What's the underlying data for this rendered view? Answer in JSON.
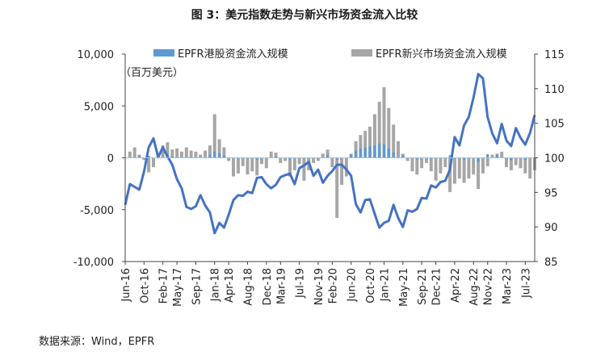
{
  "title": "图 3：美元指数走势与新兴市场资金流入比较",
  "source": "数据来源：Wind，EPFR",
  "chart_data": {
    "type": "bar+line",
    "y_left": {
      "label": "（百万美元）",
      "ylim": [
        -10000,
        10000
      ],
      "ticks": [
        -10000,
        -5000,
        0,
        5000,
        10000
      ],
      "tick_labels": [
        "-10,000",
        "-5,000",
        "0",
        "5,000",
        "10,000"
      ]
    },
    "y_right": {
      "label": "",
      "ylim": [
        85,
        115
      ],
      "ticks": [
        85,
        90,
        95,
        100,
        105,
        110,
        115
      ],
      "tick_labels": [
        "85",
        "90",
        "95",
        "100",
        "105",
        "110",
        "115"
      ]
    },
    "x_range": [
      "2016-06",
      "2023-09"
    ],
    "x_ticks": [
      {
        "date": "2016-06",
        "label": "Jun-16"
      },
      {
        "date": "2016-10",
        "label": "Oct-16"
      },
      {
        "date": "2017-02",
        "label": "Feb-17"
      },
      {
        "date": "2017-05",
        "label": "May-17"
      },
      {
        "date": "2017-09",
        "label": "Sep-17"
      },
      {
        "date": "2018-01",
        "label": "Jan-18"
      },
      {
        "date": "2018-04",
        "label": "Apr-18"
      },
      {
        "date": "2018-08",
        "label": "Aug-18"
      },
      {
        "date": "2018-12",
        "label": "Dec-18"
      },
      {
        "date": "2019-03",
        "label": "Mar-19"
      },
      {
        "date": "2019-07",
        "label": "Jul-19"
      },
      {
        "date": "2019-11",
        "label": "Nov-19"
      },
      {
        "date": "2020-02",
        "label": "Feb-20"
      },
      {
        "date": "2020-06",
        "label": "Jun-20"
      },
      {
        "date": "2020-10",
        "label": "Oct-20"
      },
      {
        "date": "2021-01",
        "label": "Jan-21"
      },
      {
        "date": "2021-05",
        "label": "May-21"
      },
      {
        "date": "2021-09",
        "label": "Sep-21"
      },
      {
        "date": "2021-12",
        "label": "Dec-21"
      },
      {
        "date": "2022-04",
        "label": "Apr-22"
      },
      {
        "date": "2022-08",
        "label": "Aug-22"
      },
      {
        "date": "2022-11",
        "label": "Nov-22"
      },
      {
        "date": "2023-03",
        "label": "Mar-23"
      },
      {
        "date": "2023-07",
        "label": "Jul-23"
      }
    ],
    "legend": [
      "EPFR港股资金流入规模",
      "EPFR新兴市场资金流入规模"
    ],
    "series": [
      {
        "name": "EPFR港股资金流入规模",
        "type": "bar",
        "axis": "left",
        "color": "#5b9bd5",
        "points": [
          [
            "2016-09",
            150
          ],
          [
            "2016-11",
            200
          ],
          [
            "2017-01",
            350
          ],
          [
            "2017-04",
            120
          ],
          [
            "2017-08",
            80
          ],
          [
            "2017-12",
            300
          ],
          [
            "2018-01",
            600
          ],
          [
            "2018-02",
            450
          ],
          [
            "2018-03",
            200
          ],
          [
            "2018-06",
            -100
          ],
          [
            "2018-10",
            -150
          ],
          [
            "2019-02",
            100
          ],
          [
            "2019-05",
            -120
          ],
          [
            "2019-08",
            -100
          ],
          [
            "2020-01",
            250
          ],
          [
            "2020-03",
            -200
          ],
          [
            "2020-06",
            300
          ],
          [
            "2020-07",
            700
          ],
          [
            "2020-08",
            900
          ],
          [
            "2020-09",
            1000
          ],
          [
            "2020-10",
            1100
          ],
          [
            "2020-11",
            1200
          ],
          [
            "2020-12",
            1400
          ],
          [
            "2021-01",
            1300
          ],
          [
            "2021-02",
            900
          ],
          [
            "2021-03",
            500
          ],
          [
            "2021-05",
            200
          ],
          [
            "2021-08",
            -150
          ],
          [
            "2021-11",
            -100
          ],
          [
            "2022-03",
            250
          ],
          [
            "2022-06",
            -200
          ],
          [
            "2022-09",
            -400
          ],
          [
            "2022-11",
            350
          ],
          [
            "2023-01",
            300
          ],
          [
            "2023-04",
            -250
          ],
          [
            "2023-07",
            -200
          ]
        ]
      },
      {
        "name": "EPFR新兴市场资金流入规模",
        "type": "bar",
        "axis": "left",
        "color": "#a6a6a6",
        "points": [
          [
            "2016-07",
            600
          ],
          [
            "2016-08",
            1000
          ],
          [
            "2016-09",
            300
          ],
          [
            "2016-10",
            -200
          ],
          [
            "2016-11",
            -1400
          ],
          [
            "2016-12",
            -900
          ],
          [
            "2017-01",
            300
          ],
          [
            "2017-02",
            1200
          ],
          [
            "2017-03",
            1500
          ],
          [
            "2017-04",
            800
          ],
          [
            "2017-05",
            900
          ],
          [
            "2017-06",
            600
          ],
          [
            "2017-07",
            1000
          ],
          [
            "2017-08",
            700
          ],
          [
            "2017-09",
            600
          ],
          [
            "2017-10",
            300
          ],
          [
            "2017-11",
            700
          ],
          [
            "2017-12",
            1200
          ],
          [
            "2018-01",
            4200
          ],
          [
            "2018-02",
            1800
          ],
          [
            "2018-03",
            1000
          ],
          [
            "2018-04",
            -300
          ],
          [
            "2018-05",
            -1800
          ],
          [
            "2018-06",
            -1500
          ],
          [
            "2018-07",
            -800
          ],
          [
            "2018-08",
            -1600
          ],
          [
            "2018-09",
            -1300
          ],
          [
            "2018-10",
            -1700
          ],
          [
            "2018-11",
            -600
          ],
          [
            "2018-12",
            -1000
          ],
          [
            "2019-01",
            600
          ],
          [
            "2019-02",
            500
          ],
          [
            "2019-03",
            -500
          ],
          [
            "2019-04",
            -300
          ],
          [
            "2019-05",
            -1800
          ],
          [
            "2019-06",
            -1200
          ],
          [
            "2019-07",
            -600
          ],
          [
            "2019-08",
            -2200
          ],
          [
            "2019-09",
            -1200
          ],
          [
            "2019-10",
            -500
          ],
          [
            "2019-11",
            -300
          ],
          [
            "2019-12",
            400
          ],
          [
            "2020-01",
            800
          ],
          [
            "2020-02",
            -900
          ],
          [
            "2020-03",
            -5800
          ],
          [
            "2020-04",
            -2600
          ],
          [
            "2020-05",
            -1800
          ],
          [
            "2020-06",
            400
          ],
          [
            "2020-07",
            1600
          ],
          [
            "2020-08",
            2200
          ],
          [
            "2020-09",
            2600
          ],
          [
            "2020-10",
            3000
          ],
          [
            "2020-11",
            4200
          ],
          [
            "2020-12",
            5400
          ],
          [
            "2021-01",
            6800
          ],
          [
            "2021-02",
            4800
          ],
          [
            "2021-03",
            3200
          ],
          [
            "2021-04",
            1600
          ],
          [
            "2021-05",
            400
          ],
          [
            "2021-06",
            -300
          ],
          [
            "2021-07",
            -1300
          ],
          [
            "2021-08",
            -1600
          ],
          [
            "2021-09",
            -1000
          ],
          [
            "2021-10",
            -500
          ],
          [
            "2021-11",
            -1300
          ],
          [
            "2021-12",
            -2200
          ],
          [
            "2022-01",
            -1500
          ],
          [
            "2022-02",
            -900
          ],
          [
            "2022-03",
            -3300
          ],
          [
            "2022-04",
            -2500
          ],
          [
            "2022-05",
            -2000
          ],
          [
            "2022-06",
            -2400
          ],
          [
            "2022-07",
            -2000
          ],
          [
            "2022-08",
            -1600
          ],
          [
            "2022-09",
            -3000
          ],
          [
            "2022-10",
            -1500
          ],
          [
            "2022-11",
            -800
          ],
          [
            "2022-12",
            300
          ],
          [
            "2023-01",
            400
          ],
          [
            "2023-02",
            600
          ],
          [
            "2023-03",
            -900
          ],
          [
            "2023-04",
            -1200
          ],
          [
            "2023-05",
            -700
          ],
          [
            "2023-06",
            -1000
          ],
          [
            "2023-07",
            -1500
          ],
          [
            "2023-08",
            -2000
          ],
          [
            "2023-09",
            -1200
          ]
        ]
      },
      {
        "name": "",
        "type": "line",
        "axis": "right",
        "color": "#4472c4",
        "points": [
          [
            "2016-06",
            93.2
          ],
          [
            "2016-07",
            96.2
          ],
          [
            "2016-08",
            95.8
          ],
          [
            "2016-09",
            95.4
          ],
          [
            "2016-10",
            98.0
          ],
          [
            "2016-11",
            101.5
          ],
          [
            "2016-12",
            102.8
          ],
          [
            "2017-01",
            100.1
          ],
          [
            "2017-02",
            101.5
          ],
          [
            "2017-03",
            100.2
          ],
          [
            "2017-04",
            99.0
          ],
          [
            "2017-05",
            96.9
          ],
          [
            "2017-06",
            95.6
          ],
          [
            "2017-07",
            92.9
          ],
          [
            "2017-08",
            92.6
          ],
          [
            "2017-09",
            93.0
          ],
          [
            "2017-10",
            94.6
          ],
          [
            "2017-11",
            93.1
          ],
          [
            "2017-12",
            92.1
          ],
          [
            "2018-01",
            89.1
          ],
          [
            "2018-02",
            90.6
          ],
          [
            "2018-03",
            89.9
          ],
          [
            "2018-04",
            91.8
          ],
          [
            "2018-05",
            93.9
          ],
          [
            "2018-06",
            94.6
          ],
          [
            "2018-07",
            94.5
          ],
          [
            "2018-08",
            95.1
          ],
          [
            "2018-09",
            94.9
          ],
          [
            "2018-10",
            97.1
          ],
          [
            "2018-11",
            97.2
          ],
          [
            "2018-12",
            96.2
          ],
          [
            "2019-01",
            95.6
          ],
          [
            "2019-02",
            96.1
          ],
          [
            "2019-03",
            97.2
          ],
          [
            "2019-04",
            97.5
          ],
          [
            "2019-05",
            97.7
          ],
          [
            "2019-06",
            96.2
          ],
          [
            "2019-07",
            98.5
          ],
          [
            "2019-08",
            98.9
          ],
          [
            "2019-09",
            99.4
          ],
          [
            "2019-10",
            97.4
          ],
          [
            "2019-11",
            98.3
          ],
          [
            "2019-12",
            96.4
          ],
          [
            "2020-01",
            97.4
          ],
          [
            "2020-02",
            98.1
          ],
          [
            "2020-03",
            99.0
          ],
          [
            "2020-04",
            99.0
          ],
          [
            "2020-05",
            98.3
          ],
          [
            "2020-06",
            97.4
          ],
          [
            "2020-07",
            93.3
          ],
          [
            "2020-08",
            92.1
          ],
          [
            "2020-09",
            93.9
          ],
          [
            "2020-10",
            94.0
          ],
          [
            "2020-11",
            91.9
          ],
          [
            "2020-12",
            89.9
          ],
          [
            "2021-01",
            90.6
          ],
          [
            "2021-02",
            90.9
          ],
          [
            "2021-03",
            93.2
          ],
          [
            "2021-04",
            91.3
          ],
          [
            "2021-05",
            90.0
          ],
          [
            "2021-06",
            92.4
          ],
          [
            "2021-07",
            92.2
          ],
          [
            "2021-08",
            92.6
          ],
          [
            "2021-09",
            94.2
          ],
          [
            "2021-10",
            94.1
          ],
          [
            "2021-11",
            96.0
          ],
          [
            "2021-12",
            95.7
          ],
          [
            "2022-01",
            96.5
          ],
          [
            "2022-02",
            96.7
          ],
          [
            "2022-03",
            98.3
          ],
          [
            "2022-04",
            103.0
          ],
          [
            "2022-05",
            101.8
          ],
          [
            "2022-06",
            104.7
          ],
          [
            "2022-07",
            105.9
          ],
          [
            "2022-08",
            108.7
          ],
          [
            "2022-09",
            112.1
          ],
          [
            "2022-10",
            111.5
          ],
          [
            "2022-11",
            105.9
          ],
          [
            "2022-12",
            103.5
          ],
          [
            "2023-01",
            102.1
          ],
          [
            "2023-02",
            104.9
          ],
          [
            "2023-03",
            102.5
          ],
          [
            "2023-04",
            101.7
          ],
          [
            "2023-05",
            104.3
          ],
          [
            "2023-06",
            102.9
          ],
          [
            "2023-07",
            101.9
          ],
          [
            "2023-08",
            103.6
          ],
          [
            "2023-09",
            106.2
          ]
        ]
      }
    ],
    "grid": false,
    "legend_position": "top"
  }
}
